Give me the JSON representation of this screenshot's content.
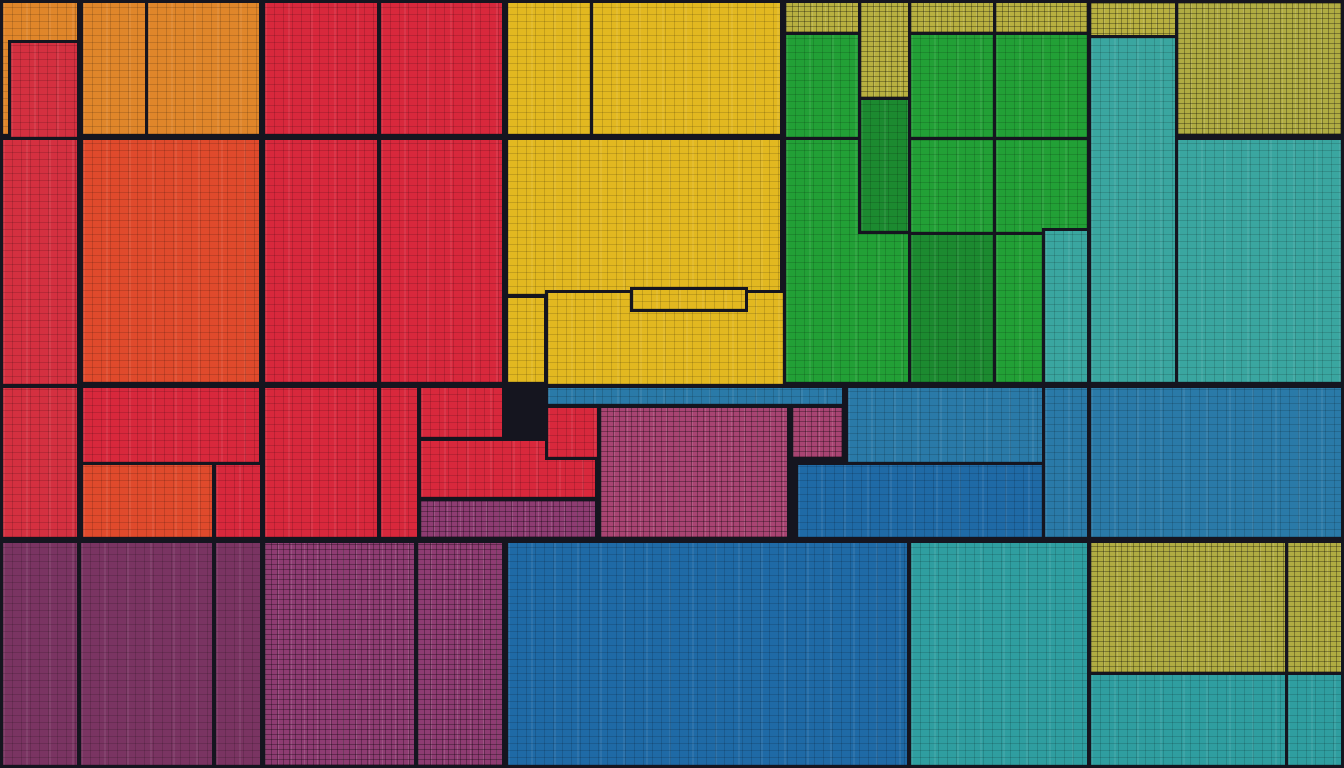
{
  "palette": {
    "lines": "#15151f",
    "orange": "#e0862a",
    "orange_red": "#e04a2c",
    "red": "#d8283c",
    "crimson": "#d43040",
    "yellow": "#e2b820",
    "green": "#22a036",
    "green_dark": "#1c8a30",
    "yellow_teal": "#b8b040",
    "teal": "#3aa6a0",
    "blue": "#2a7aa8",
    "blue_deep": "#1f6aa6",
    "pink_grid": "#a84472",
    "purple": "#7a3462",
    "purple_pink": "#8e3c72",
    "teal_bottom": "#2f9ea0",
    "olive_yellow": "#b0ac42"
  }
}
